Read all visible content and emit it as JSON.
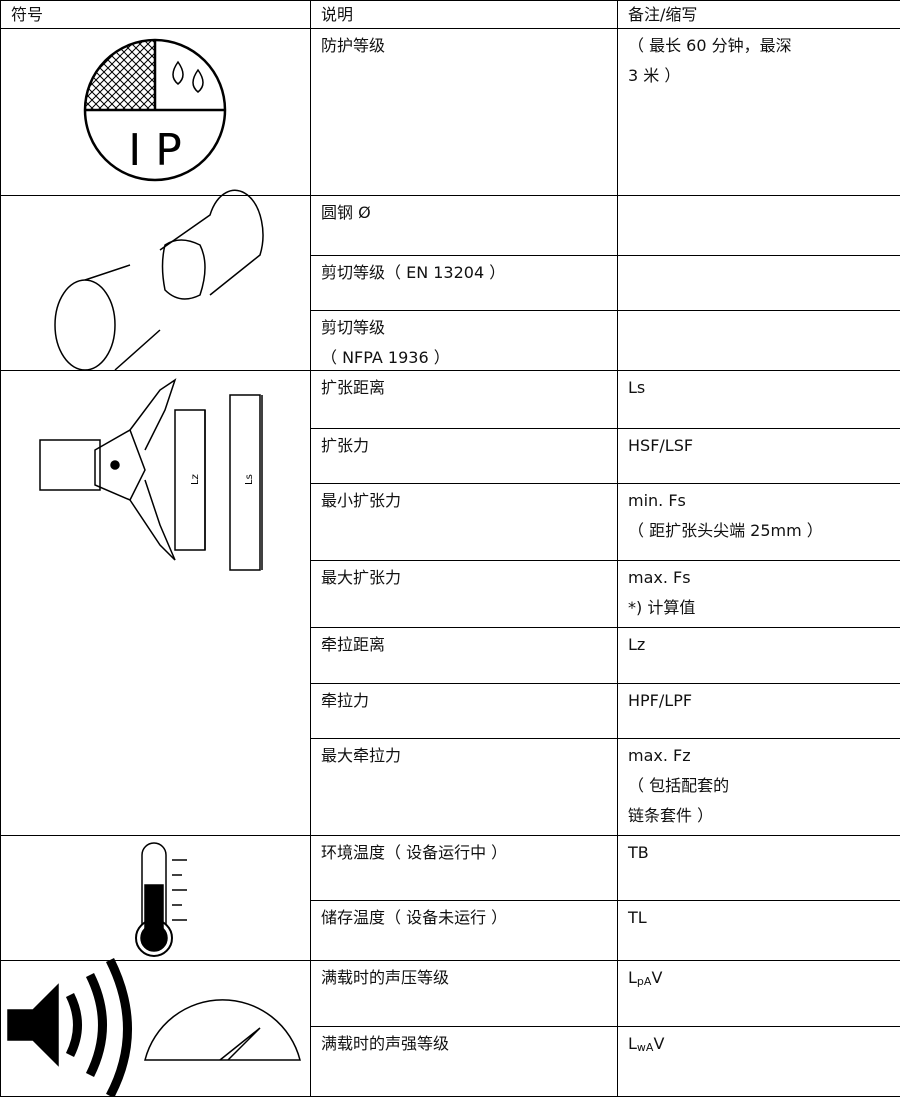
{
  "header": [
    "符号",
    "说明",
    "备注/缩写"
  ],
  "symbol_texts": {
    "ip": "I P",
    "lz": "Lz",
    "ls": "Ls"
  },
  "groups": [
    {
      "rows": [
        {
          "description": [
            "防护等级"
          ],
          "note": [
            "（ 最长 60 分钟，最深",
            "3 米 ）"
          ]
        }
      ]
    },
    {
      "rows": [
        {
          "description": [
            "圆钢 Ø"
          ],
          "note": []
        },
        {
          "description": [
            "剪切等级（ EN 13204 ）"
          ],
          "note": []
        },
        {
          "description": [
            "剪切等级",
            "（ NFPA 1936 ）"
          ],
          "note": []
        }
      ]
    },
    {
      "rows": [
        {
          "description": [
            "扩张距离"
          ],
          "note": [
            "Ls"
          ]
        },
        {
          "description": [
            "扩张力"
          ],
          "note": [
            "HSF/LSF"
          ]
        },
        {
          "description": [
            "最小扩张力"
          ],
          "note": [
            "min. Fs",
            "（ 距扩张头尖端 25mm ）"
          ]
        },
        {
          "description": [
            "最大扩张力"
          ],
          "note": [
            "max. Fs",
            "*) 计算值"
          ]
        },
        {
          "description": [
            "牵拉距离"
          ],
          "note": [
            "Lz"
          ]
        },
        {
          "description": [
            "牵拉力"
          ],
          "note": [
            "HPF/LPF"
          ]
        },
        {
          "description": [
            "最大牵拉力"
          ],
          "note": [
            "max. Fz",
            "（ 包括配套的",
            "链条套件 ）"
          ]
        }
      ]
    },
    {
      "rows": [
        {
          "description": [
            "环境温度（ 设备运行中 ）"
          ],
          "note": [
            "TB"
          ]
        },
        {
          "description": [
            "储存温度（ 设备未运行 ）"
          ],
          "note": [
            "TL"
          ]
        }
      ]
    },
    {
      "rows": [
        {
          "description": [
            "满载时的声压等级"
          ],
          "note": [],
          "note_symbol": {
            "main": "L",
            "sub": "pA",
            "tail": "V"
          }
        },
        {
          "description": [
            "满载时的声强等级"
          ],
          "note": [],
          "note_symbol": {
            "main": "L",
            "sub": "wA",
            "tail": "V"
          }
        }
      ]
    }
  ]
}
